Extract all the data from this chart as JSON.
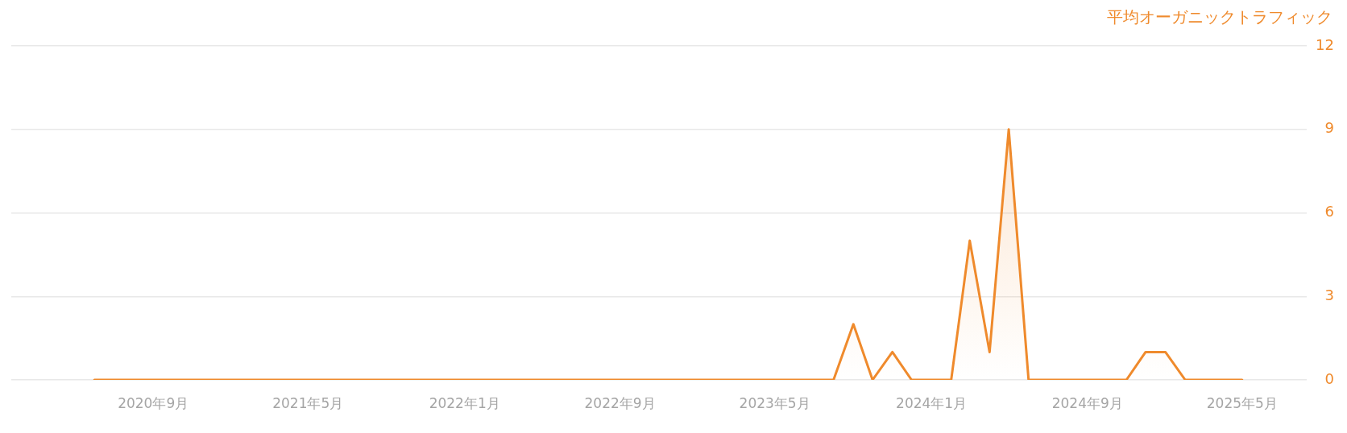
{
  "chart_data": {
    "type": "area",
    "ylabel": "平均オーガニックトラフィック",
    "x": [
      "2020-06",
      "2020-07",
      "2020-08",
      "2020-09",
      "2020-10",
      "2020-11",
      "2020-12",
      "2021-01",
      "2021-02",
      "2021-03",
      "2021-04",
      "2021-05",
      "2021-06",
      "2021-07",
      "2021-08",
      "2021-09",
      "2021-10",
      "2021-11",
      "2021-12",
      "2022-01",
      "2022-02",
      "2022-03",
      "2022-04",
      "2022-05",
      "2022-06",
      "2022-07",
      "2022-08",
      "2022-09",
      "2022-10",
      "2022-11",
      "2022-12",
      "2023-01",
      "2023-02",
      "2023-03",
      "2023-04",
      "2023-05",
      "2023-06",
      "2023-07",
      "2023-08",
      "2023-09",
      "2023-10",
      "2023-11",
      "2023-12",
      "2024-01",
      "2024-02",
      "2024-03",
      "2024-04",
      "2024-05",
      "2024-06",
      "2024-07",
      "2024-08",
      "2024-09",
      "2024-10",
      "2024-11",
      "2024-12",
      "2025-01",
      "2025-02",
      "2025-03",
      "2025-04",
      "2025-05"
    ],
    "series": [
      {
        "color": "#ef8a2c",
        "values": [
          0,
          0,
          0,
          0,
          0,
          0,
          0,
          0,
          0,
          0,
          0,
          0,
          0,
          0,
          0,
          0,
          0,
          0,
          0,
          0,
          0,
          0,
          0,
          0,
          0,
          0,
          0,
          0,
          0,
          0,
          0,
          0,
          0,
          0,
          0,
          0,
          0,
          0,
          0,
          2,
          0,
          1,
          0,
          0,
          0,
          5,
          1,
          9,
          0,
          0,
          0,
          0,
          0,
          0,
          1,
          1,
          0,
          0,
          0,
          0
        ]
      }
    ],
    "xlim": [
      "2020-01-23",
      "2025-08-10"
    ],
    "xticks": [
      {
        "value": "2020-09",
        "label": "2020年9月"
      },
      {
        "value": "2021-05",
        "label": "2021年5月"
      },
      {
        "value": "2022-01",
        "label": "2022年1月"
      },
      {
        "value": "2022-09",
        "label": "2022年9月"
      },
      {
        "value": "2023-05",
        "label": "2023年5月"
      },
      {
        "value": "2024-01",
        "label": "2024年1月"
      },
      {
        "value": "2024-09",
        "label": "2024年9月"
      },
      {
        "value": "2025-05",
        "label": "2025年5月"
      }
    ],
    "ylim": [
      0,
      12
    ],
    "yticks": [
      0,
      3,
      6,
      9,
      12
    ],
    "grid": "y",
    "marker": "none",
    "line_style": "solid"
  }
}
